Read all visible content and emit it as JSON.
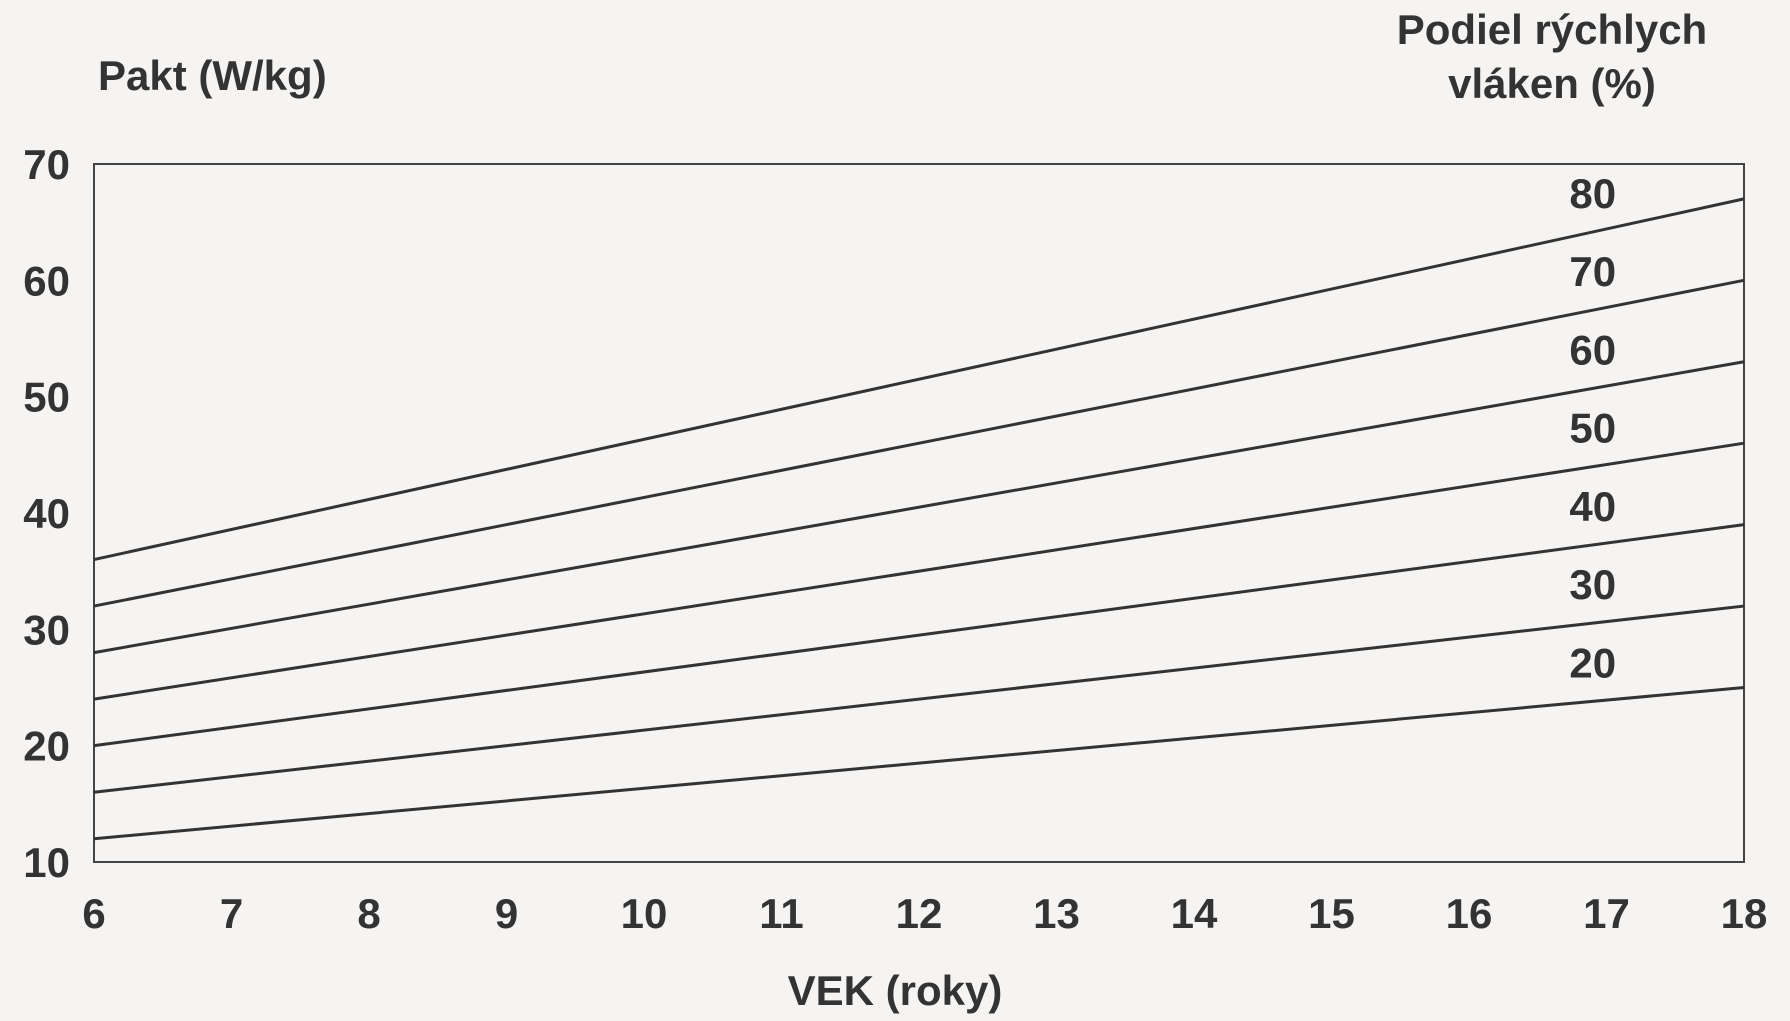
{
  "chart_data": {
    "type": "line",
    "ylabel": "Pakt (W/kg)",
    "xlabel": "VEK (roky)",
    "legend_title_lines": [
      "Podiel rýchlych",
      "vláken (%)"
    ],
    "xlim": [
      6,
      18
    ],
    "ylim": [
      10,
      70
    ],
    "x_ticks": [
      6,
      7,
      8,
      9,
      10,
      11,
      12,
      13,
      14,
      15,
      16,
      17,
      18
    ],
    "y_ticks": [
      10,
      20,
      30,
      40,
      50,
      60,
      70
    ],
    "grid": true,
    "grid_style": "dashed",
    "series_labels_position": "right-end",
    "series": [
      {
        "name": "80",
        "x": [
          6,
          18
        ],
        "values": [
          36,
          67
        ]
      },
      {
        "name": "70",
        "x": [
          6,
          18
        ],
        "values": [
          32,
          60
        ]
      },
      {
        "name": "60",
        "x": [
          6,
          18
        ],
        "values": [
          28,
          53
        ]
      },
      {
        "name": "50",
        "x": [
          6,
          18
        ],
        "values": [
          24,
          46
        ]
      },
      {
        "name": "40",
        "x": [
          6,
          18
        ],
        "values": [
          20,
          39
        ]
      },
      {
        "name": "30",
        "x": [
          6,
          18
        ],
        "values": [
          16,
          32
        ]
      },
      {
        "name": "20",
        "x": [
          6,
          18
        ],
        "values": [
          12,
          25
        ]
      }
    ],
    "colors": {
      "line": "#333333",
      "grid": "#555555",
      "background": "#f5f4f2"
    }
  }
}
